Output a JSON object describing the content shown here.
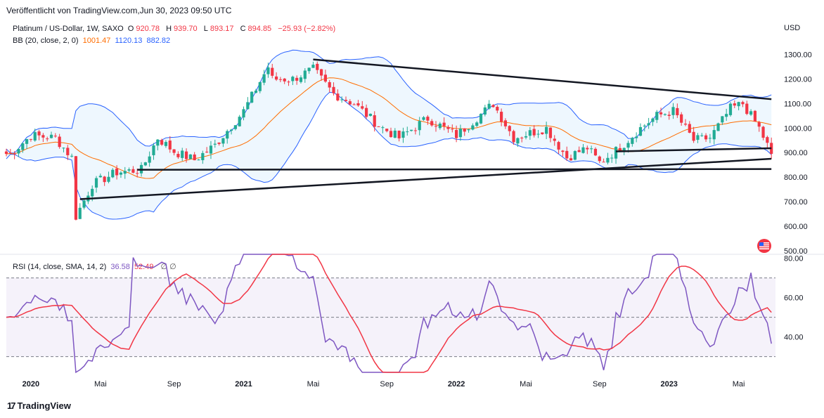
{
  "header": {
    "published": "Veröffentlicht von TradingView.com,Jun 30, 2023 09:50 UTC"
  },
  "legend": {
    "symbol": "Platinum / US-Dollar, 1W, SAXO",
    "o_label": "O",
    "o_value": "920.78",
    "h_label": "H",
    "h_value": "939.70",
    "l_label": "L",
    "l_value": "893.17",
    "c_label": "C",
    "c_value": "894.85",
    "change": "−25.93 (−2.82%)",
    "bb_label": "BB (20, close, 2, 0)",
    "bb_basis": "1001.47",
    "bb_upper": "1120.13",
    "bb_lower": "882.82",
    "rsi_label": "RSI (14, close, SMA, 14, 2)",
    "rsi_value": "36.58",
    "rsi_sma": "52.49",
    "hidden_icons": "∅ ∅"
  },
  "currency": "USD",
  "footer": {
    "brand": "TradingView",
    "logo": "17"
  },
  "colors": {
    "up": "#22ab94",
    "down": "#f23645",
    "bb_basis": "#ff6d00",
    "bb_band": "#2962ff",
    "bb_fill": "#e3f2fd",
    "rsi": "#7e57c2",
    "rsi_sma": "#f23645"
  },
  "chart_data": [
    {
      "type": "candlestick",
      "title": "Platinum / US-Dollar, 1W, SAXO",
      "ylabel": "USD",
      "ylim": [
        485,
        1345
      ],
      "y_ticks": [
        "1300.00",
        "1200.00",
        "1100.00",
        "1000.00",
        "900.00",
        "800.00",
        "700.00",
        "600.00",
        "500.00"
      ],
      "y_tick_values": [
        1300,
        1200,
        1100,
        1000,
        900,
        800,
        700,
        600,
        500
      ],
      "x_ticks": [
        "2020",
        "Mai",
        "Sep",
        "2021",
        "Mai",
        "Sep",
        "2022",
        "Mai",
        "Sep",
        "2023",
        "Mai"
      ],
      "x_tick_dates": [
        "2020-01-06",
        "2020-05-04",
        "2020-09-07",
        "2021-01-04",
        "2021-05-03",
        "2021-09-06",
        "2022-01-03",
        "2022-05-02",
        "2022-09-05",
        "2023-01-02",
        "2023-05-01"
      ],
      "series_close_anchors": {
        "dates": [
          "2019-12-02",
          "2020-01-06",
          "2020-02-17",
          "2020-03-16",
          "2020-03-23",
          "2020-04-20",
          "2020-06-01",
          "2020-07-13",
          "2020-08-10",
          "2020-09-07",
          "2020-10-12",
          "2020-11-16",
          "2021-01-04",
          "2021-02-15",
          "2021-02-22",
          "2021-03-29",
          "2021-05-03",
          "2021-06-07",
          "2021-07-12",
          "2021-08-23",
          "2021-09-27",
          "2021-11-15",
          "2022-01-03",
          "2022-03-07",
          "2022-04-11",
          "2022-05-09",
          "2022-06-06",
          "2022-07-11",
          "2022-08-15",
          "2022-09-05",
          "2022-10-10",
          "2022-11-14",
          "2022-12-12",
          "2023-01-09",
          "2023-02-13",
          "2023-03-13",
          "2023-04-17",
          "2023-05-08",
          "2023-06-05",
          "2023-06-26"
        ],
        "close": [
          895,
          970,
          960,
          880,
          640,
          770,
          820,
          830,
          960,
          905,
          870,
          930,
          1070,
          1250,
          1200,
          1200,
          1240,
          1140,
          1100,
          1010,
          960,
          1040,
          970,
          1100,
          960,
          980,
          1000,
          880,
          920,
          860,
          920,
          1000,
          1050,
          1070,
          950,
          960,
          1080,
          1100,
          1000,
          895
        ]
      },
      "bollinger": {
        "period": 20,
        "mult": 2,
        "last_basis": 1001.47,
        "last_upper": 1120.13,
        "last_lower": 882.82
      },
      "trendlines": [
        {
          "name": "upper-resistance",
          "from": [
            "2021-05-03",
            1280
          ],
          "to": [
            "2023-06-26",
            1118
          ]
        },
        {
          "name": "support-860",
          "from": [
            "2022-10-03",
            905
          ],
          "to": [
            "2023-06-26",
            918
          ]
        },
        {
          "name": "support-830",
          "from": [
            "2020-07-06",
            830
          ],
          "to": [
            "2023-06-26",
            833
          ]
        },
        {
          "name": "rising-support",
          "from": [
            "2020-03-30",
            710
          ],
          "to": [
            "2023-06-26",
            875
          ]
        }
      ]
    },
    {
      "type": "line",
      "title": "RSI (14, close, SMA, 14, 2)",
      "ylim": [
        22,
        82
      ],
      "y_ticks": [
        "80.00",
        "60.00",
        "40.00"
      ],
      "y_tick_values": [
        80,
        60,
        40
      ],
      "band": [
        30,
        70
      ],
      "midline": 50,
      "series": [
        {
          "name": "RSI",
          "last": 36.58
        },
        {
          "name": "SMA",
          "last": 52.49
        }
      ]
    }
  ]
}
